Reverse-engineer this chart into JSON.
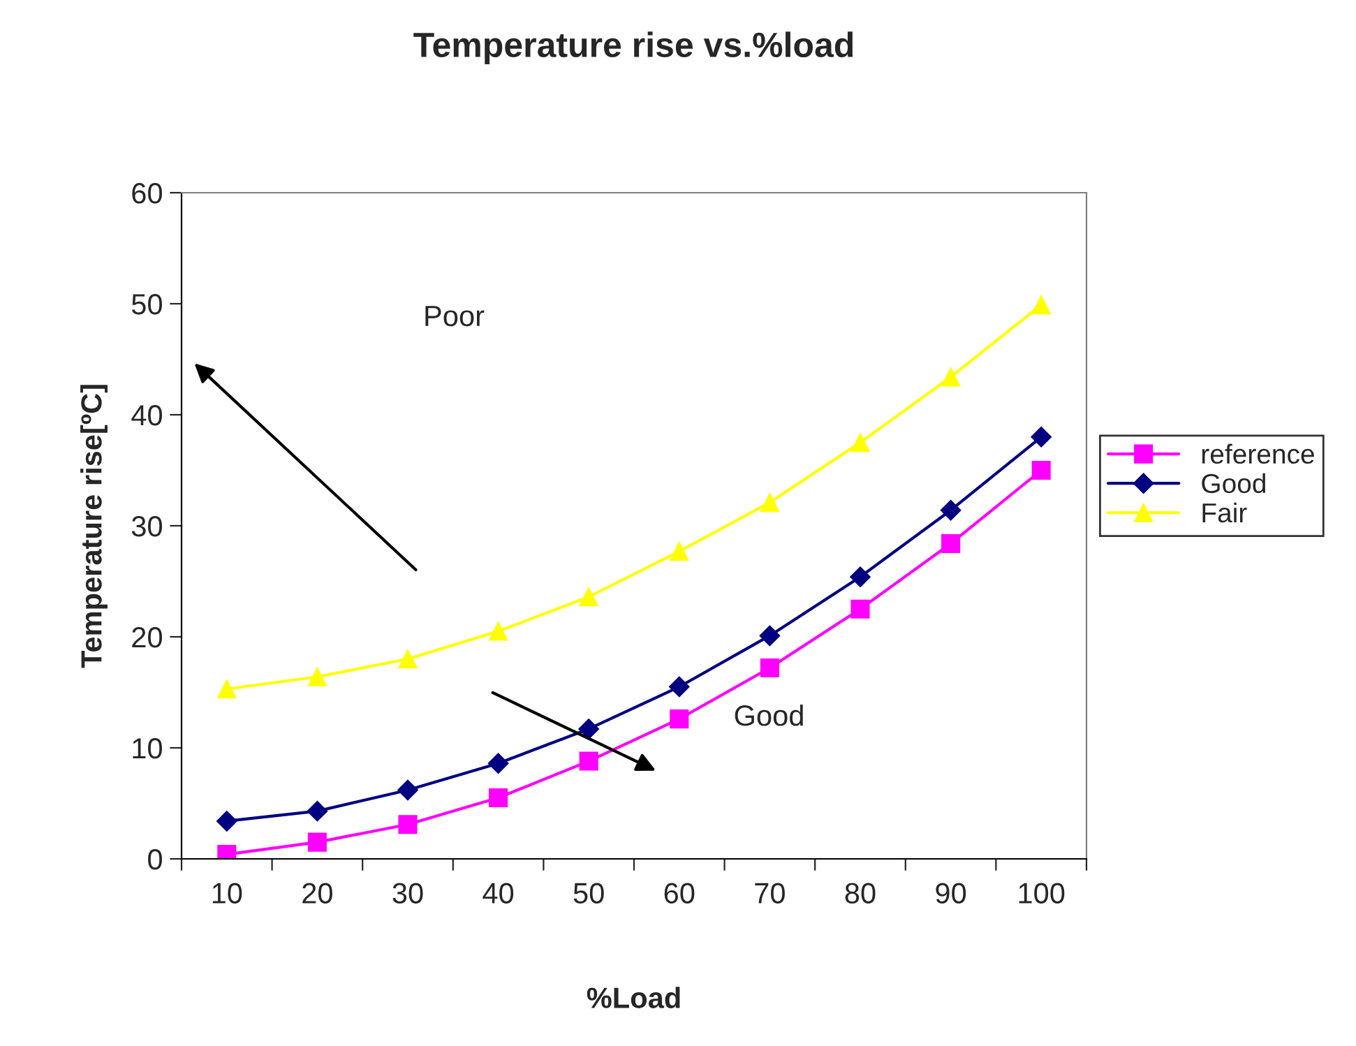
{
  "chart_data": {
    "type": "line",
    "title": "Temperature rise vs.%load",
    "xlabel": "%Load",
    "ylabel": "Temperature rise[ºC]",
    "categories": [
      "10",
      "20",
      "30",
      "40",
      "50",
      "60",
      "70",
      "80",
      "90",
      "100"
    ],
    "series": [
      {
        "name": "reference",
        "color": "#ff00ff",
        "marker": "square",
        "values": [
          0.4,
          1.5,
          3.1,
          5.5,
          8.8,
          12.6,
          17.2,
          22.5,
          28.4,
          35.0
        ]
      },
      {
        "name": "Good",
        "color": "#000080",
        "marker": "diamond",
        "values": [
          3.4,
          4.3,
          6.2,
          8.6,
          11.7,
          15.5,
          20.1,
          25.4,
          31.4,
          38.0
        ]
      },
      {
        "name": "Fair",
        "color": "#ffff00",
        "marker": "triangle",
        "values": [
          15.3,
          16.4,
          18.0,
          20.5,
          23.6,
          27.7,
          32.1,
          37.5,
          43.4,
          49.9
        ]
      }
    ],
    "annotations": [
      "Poor",
      "Good"
    ],
    "ylim": [
      0,
      60
    ],
    "yticks": [
      0,
      10,
      20,
      30,
      40,
      50,
      60
    ],
    "grid": false,
    "legend": "right",
    "line_style": "solid"
  }
}
